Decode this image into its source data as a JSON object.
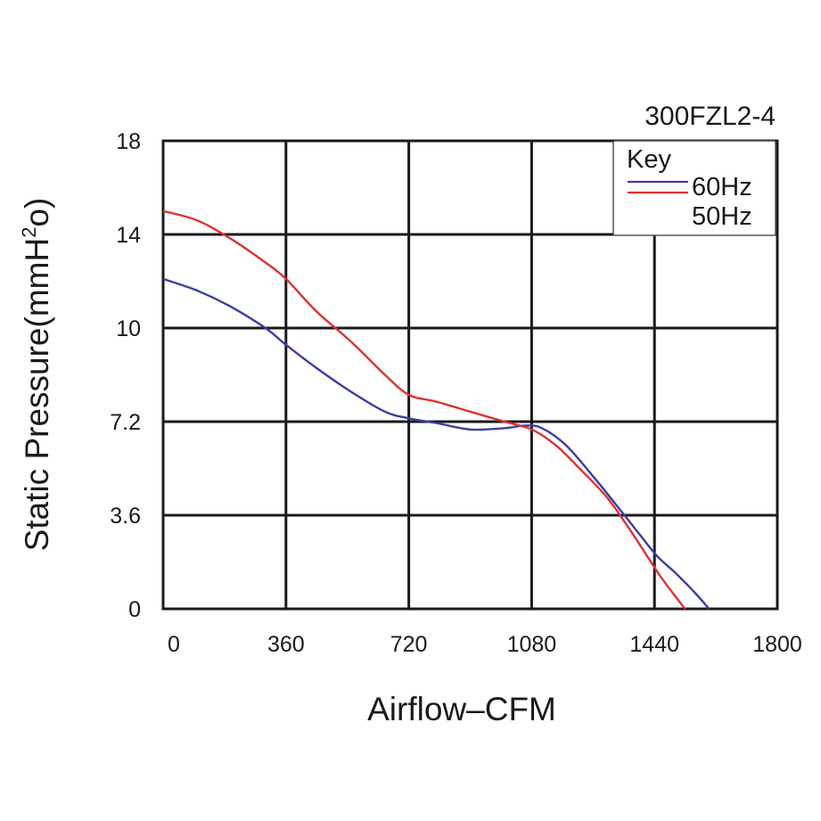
{
  "chart_data": {
    "type": "line",
    "title": "300FZL2-4",
    "xlabel": "Airflow–CFM",
    "ylabel_prefix": "Static Pressure(mmH",
    "ylabel_sup": "2",
    "ylabel_suffix": "o)",
    "xlim": [
      0,
      1800
    ],
    "y_ticks": [
      {
        "label": "18",
        "value": 18
      },
      {
        "label": "14",
        "value": 14
      },
      {
        "label": "10",
        "value": 10
      },
      {
        "label": "7.2",
        "value": 7.2
      },
      {
        "label": "3.6",
        "value": 3.6
      },
      {
        "label": "0",
        "value": 0
      }
    ],
    "x_ticks": [
      {
        "label": "0",
        "value": 0
      },
      {
        "label": "360",
        "value": 360
      },
      {
        "label": "720",
        "value": 720
      },
      {
        "label": "1080",
        "value": 1080
      },
      {
        "label": "1440",
        "value": 1440
      },
      {
        "label": "1800",
        "value": 1800
      }
    ],
    "grid": true,
    "legend": {
      "title": "Key",
      "position": "top-right"
    },
    "series": [
      {
        "name": "60Hz",
        "color": "#3b3fa0",
        "points": [
          [
            0,
            12.1
          ],
          [
            100,
            11.6
          ],
          [
            200,
            10.9
          ],
          [
            300,
            10.0
          ],
          [
            360,
            9.5
          ],
          [
            450,
            8.8
          ],
          [
            550,
            8.1
          ],
          [
            650,
            7.5
          ],
          [
            720,
            7.3
          ],
          [
            800,
            7.15
          ],
          [
            900,
            6.9
          ],
          [
            1000,
            6.95
          ],
          [
            1060,
            7.05
          ],
          [
            1110,
            6.95
          ],
          [
            1180,
            6.3
          ],
          [
            1260,
            5.1
          ],
          [
            1340,
            3.8
          ],
          [
            1400,
            2.8
          ],
          [
            1450,
            2.0
          ],
          [
            1500,
            1.4
          ],
          [
            1560,
            0.6
          ],
          [
            1600,
            0.0
          ]
        ]
      },
      {
        "name": "50Hz",
        "color": "#e03030",
        "points": [
          [
            0,
            15.0
          ],
          [
            100,
            14.6
          ],
          [
            200,
            13.8
          ],
          [
            300,
            12.8
          ],
          [
            360,
            12.1
          ],
          [
            450,
            10.7
          ],
          [
            550,
            9.6
          ],
          [
            650,
            8.6
          ],
          [
            720,
            8.0
          ],
          [
            800,
            7.8
          ],
          [
            900,
            7.5
          ],
          [
            1000,
            7.2
          ],
          [
            1080,
            6.9
          ],
          [
            1150,
            6.3
          ],
          [
            1220,
            5.4
          ],
          [
            1300,
            4.3
          ],
          [
            1360,
            3.2
          ],
          [
            1420,
            2.0
          ],
          [
            1460,
            1.2
          ],
          [
            1500,
            0.5
          ],
          [
            1530,
            0.0
          ]
        ]
      }
    ]
  }
}
